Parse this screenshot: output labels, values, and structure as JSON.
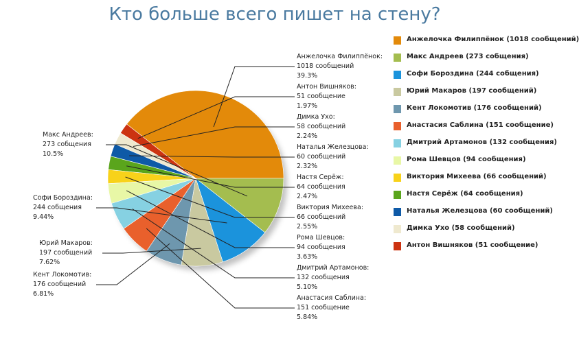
{
  "chart_data": {
    "type": "pie",
    "title": "Кто больше всего пишет на стену?",
    "legend_position": "right",
    "slices": [
      {
        "name": "Анжелочка Филиппёнок",
        "value": 1018,
        "color": "#e38a0a",
        "callout": [
          "Анжелочка Филиппёнок:",
          "1018 сообщений",
          "39.3%"
        ],
        "legend": "Анжелочка Филиппёнок (1018 сообщений)"
      },
      {
        "name": "Антон Вишняков",
        "value": 51,
        "color": "#cc3311",
        "callout": [
          "Антон Вишняков:",
          "51 сообщение",
          "1.97%"
        ],
        "legend": "Антон Вишняков (51 сообщение)"
      },
      {
        "name": "Димка Ухо",
        "value": 58,
        "color": "#efe9cf",
        "callout": [
          "Димка Ухо:",
          "58 сообщений",
          "2.24%"
        ],
        "legend": "Димка Ухо (58 сообщений)"
      },
      {
        "name": "Наталья Железцова",
        "value": 60,
        "color": "#0e5aa7",
        "callout": [
          "Наталья Железцова:",
          "60 сообщений",
          "2.32%"
        ],
        "legend": "Наталья Железцова (60 сообщений)"
      },
      {
        "name": "Настя Серёж",
        "value": 64,
        "color": "#5aa51c",
        "callout": [
          "Настя Серёж:",
          "64 сообщения",
          "2.47%"
        ],
        "legend": "Настя Серёж (64 сообщения)"
      },
      {
        "name": "Виктория Михеева",
        "value": 66,
        "color": "#f8d21a",
        "callout": [
          "Виктория Михеева:",
          "66 сообщений",
          "2.55%"
        ],
        "legend": "Виктория Михеева (66 сообщений)"
      },
      {
        "name": "Рома Шевцов",
        "value": 94,
        "color": "#e8f7a6",
        "callout": [
          "Рома Шевцов:",
          "94 сообщения",
          "3.63%"
        ],
        "legend": "Рома Шевцов (94 сообщения)"
      },
      {
        "name": "Дмитрий Артамонов",
        "value": 132,
        "color": "#86d1e2",
        "callout": [
          "Дмитрий Артамонов:",
          "132 сообщения",
          "5.10%"
        ],
        "legend": "Дмитрий Артамонов (132 сообщения)"
      },
      {
        "name": "Анастасия Саблина",
        "value": 151,
        "color": "#e9602c",
        "callout": [
          "Анастасия Саблина:",
          "151 сообщение",
          "5.84%"
        ],
        "legend": "Анастасия Саблина (151 сообщение)"
      },
      {
        "name": "Кент Локомотив",
        "value": 176,
        "color": "#6e97ae",
        "callout": [
          "Кент Локомотив:",
          "176 сообщений",
          "6.81%"
        ],
        "legend": "Кент Локомотив (176 сообщений)"
      },
      {
        "name": "Юрий Макаров",
        "value": 197,
        "color": "#c9c9a0",
        "callout": [
          "Юрий Макаров:",
          "197 сообщений",
          "7.62%"
        ],
        "legend": "Юрий Макаров (197 сообщений)"
      },
      {
        "name": "Софи Бороздина",
        "value": 244,
        "color": "#1b93dc",
        "callout": [
          "Софи Бороздина:",
          "244 собщения",
          "9.44%"
        ],
        "legend": "Софи Бороздина (244 собщения)"
      },
      {
        "name": "Макс Андреев",
        "value": 273,
        "color": "#a4bd4f",
        "callout": [
          "Макс Андреев:",
          "273 собщения",
          "10.5%"
        ],
        "legend": "Макс Андреев (273 собщения)"
      }
    ],
    "legend_order": [
      "Анжелочка Филиппёнок",
      "Макс Андреев",
      "Софи Бороздина",
      "Юрий Макаров",
      "Кент Локомотив",
      "Анастасия Саблина",
      "Дмитрий Артамонов",
      "Рома Шевцов",
      "Виктория Михеева",
      "Настя Серёж",
      "Наталья Железцова",
      "Димка Ухо",
      "Антон Вишняков"
    ]
  }
}
